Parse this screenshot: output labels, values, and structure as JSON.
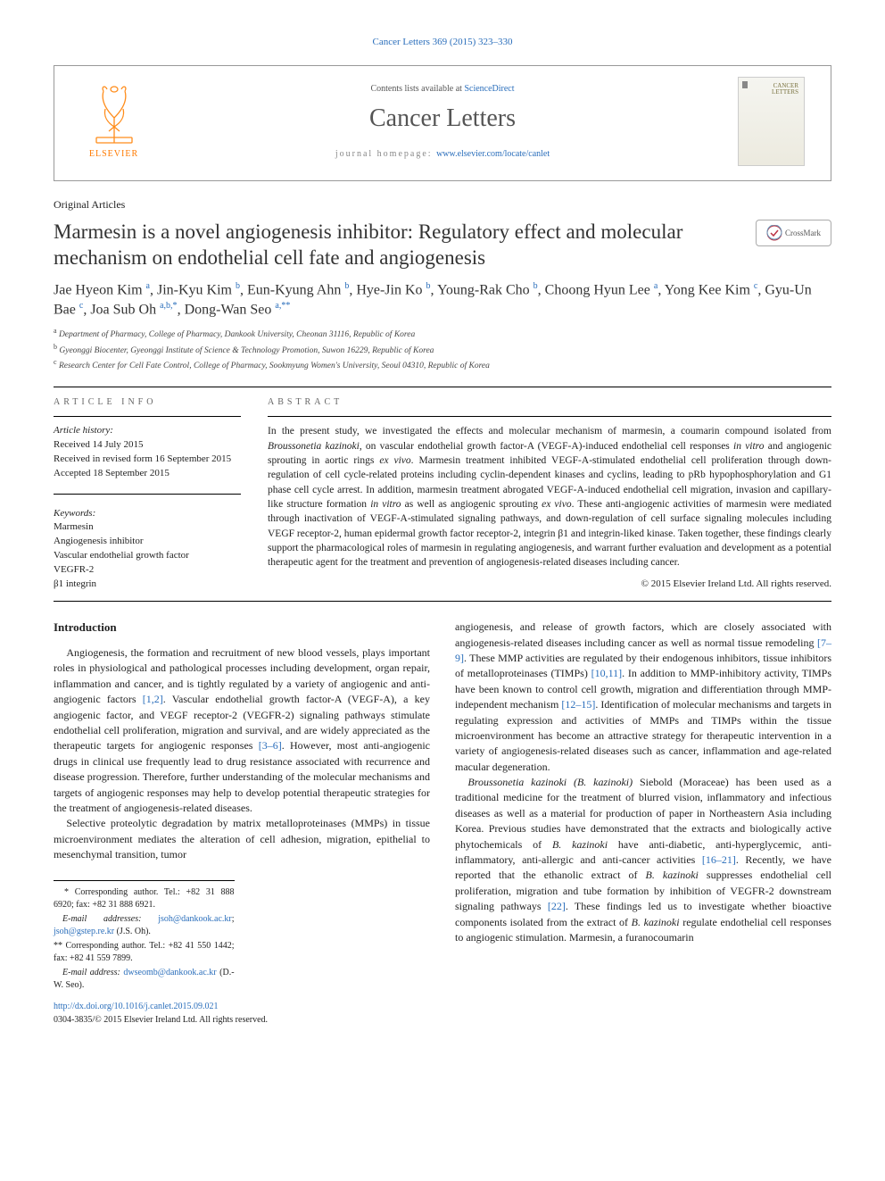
{
  "journal_ref": "Cancer Letters 369 (2015) 323–330",
  "banner": {
    "lists_prefix": "Contents lists available at ",
    "lists_link": "ScienceDirect",
    "journal_name": "Cancer Letters",
    "homepage_label": "journal homepage: ",
    "homepage_url": "www.elsevier.com/locate/canlet",
    "publisher": "ELSEVIER"
  },
  "article_type": "Original Articles",
  "title": "Marmesin is a novel angiogenesis inhibitor: Regulatory effect and molecular mechanism on endothelial cell fate and angiogenesis",
  "crossmark_label": "CrossMark",
  "authors_html": "Jae Hyeon Kim <sup>a</sup>, Jin-Kyu Kim <sup>b</sup>, Eun-Kyung Ahn <sup>b</sup>, Hye-Jin Ko <sup>b</sup>, Young-Rak Cho <sup>b</sup>, Choong Hyun Lee <sup>a</sup>, Yong Kee Kim <sup>c</sup>, Gyu-Un Bae <sup>c</sup>, Joa Sub Oh <sup>a,b,*</sup>, Dong-Wan Seo <sup>a,**</sup>",
  "affiliations": [
    {
      "sup": "a",
      "text": "Department of Pharmacy, College of Pharmacy, Dankook University, Cheonan 31116, Republic of Korea"
    },
    {
      "sup": "b",
      "text": "Gyeonggi Biocenter, Gyeonggi Institute of Science & Technology Promotion, Suwon 16229, Republic of Korea"
    },
    {
      "sup": "c",
      "text": "Research Center for Cell Fate Control, College of Pharmacy, Sookmyung Women's University, Seoul 04310, Republic of Korea"
    }
  ],
  "info_head": "ARTICLE INFO",
  "history_label": "Article history:",
  "history": "Received 14 July 2015\nReceived in revised form 16 September 2015\nAccepted 18 September 2015",
  "keywords_label": "Keywords:",
  "keywords": [
    "Marmesin",
    "Angiogenesis inhibitor",
    "Vascular endothelial growth factor",
    "VEGFR-2",
    "β1 integrin"
  ],
  "abstract_head": "ABSTRACT",
  "abstract": "In the present study, we investigated the effects and molecular mechanism of marmesin, a coumarin compound isolated from Broussonetia kazinoki, on vascular endothelial growth factor-A (VEGF-A)-induced endothelial cell responses in vitro and angiogenic sprouting in aortic rings ex vivo. Marmesin treatment inhibited VEGF-A-stimulated endothelial cell proliferation through down-regulation of cell cycle-related proteins including cyclin-dependent kinases and cyclins, leading to pRb hypophosphorylation and G1 phase cell cycle arrest. In addition, marmesin treatment abrogated VEGF-A-induced endothelial cell migration, invasion and capillary-like structure formation in vitro as well as angiogenic sprouting ex vivo. These anti-angiogenic activities of marmesin were mediated through inactivation of VEGF-A-stimulated signaling pathways, and down-regulation of cell surface signaling molecules including VEGF receptor-2, human epidermal growth factor receptor-2, integrin β1 and integrin-liked kinase. Taken together, these findings clearly support the pharmacological roles of marmesin in regulating angiogenesis, and warrant further evaluation and development as a potential therapeutic agent for the treatment and prevention of angiogenesis-related diseases including cancer.",
  "abstract_copy": "© 2015 Elsevier Ireland Ltd. All rights reserved.",
  "intro_head": "Introduction",
  "p1": "Angiogenesis, the formation and recruitment of new blood vessels, plays important roles in physiological and pathological processes including development, organ repair, inflammation and cancer, and is tightly regulated by a variety of angiogenic and anti-angiogenic factors [1,2]. Vascular endothelial growth factor-A (VEGF-A), a key angiogenic factor, and VEGF receptor-2 (VEGFR-2) signaling pathways stimulate endothelial cell proliferation, migration and survival, and are widely appreciated as the therapeutic targets for angiogenic responses [3–6]. However, most anti-angiogenic drugs in clinical use frequently lead to drug resistance associated with recurrence and disease progression. Therefore, further understanding of the molecular mechanisms and targets of angiogenic responses may help to develop potential therapeutic strategies for the treatment of angiogenesis-related diseases.",
  "p2": "Selective proteolytic degradation by matrix metalloproteinases (MMPs) in tissue microenvironment mediates the alteration of cell adhesion, migration, epithelial to mesenchymal transition, tumor",
  "p3": "angiogenesis, and release of growth factors, which are closely associated with angiogenesis-related diseases including cancer as well as normal tissue remodeling [7–9]. These MMP activities are regulated by their endogenous inhibitors, tissue inhibitors of metalloproteinases (TIMPs) [10,11]. In addition to MMP-inhibitory activity, TIMPs have been known to control cell growth, migration and differentiation through MMP-independent mechanism [12–15]. Identification of molecular mechanisms and targets in regulating expression and activities of MMPs and TIMPs within the tissue microenvironment has become an attractive strategy for therapeutic intervention in a variety of angiogenesis-related diseases such as cancer, inflammation and age-related macular degeneration.",
  "p4": "Broussonetia kazinoki (B. kazinoki) Siebold (Moraceae) has been used as a traditional medicine for the treatment of blurred vision, inflammatory and infectious diseases as well as a material for production of paper in Northeastern Asia including Korea. Previous studies have demonstrated that the extracts and biologically active phytochemicals of B. kazinoki have anti-diabetic, anti-hyperglycemic, anti-inflammatory, anti-allergic and anti-cancer activities [16–21]. Recently, we have reported that the ethanolic extract of B. kazinoki suppresses endothelial cell proliferation, migration and tube formation by inhibition of VEGFR-2 downstream signaling pathways [22]. These findings led us to investigate whether bioactive components isolated from the extract of B. kazinoki regulate endothelial cell responses to angiogenic stimulation. Marmesin, a furanocoumarin",
  "refs": {
    "r1": "[1,2]",
    "r2": "[3–6]",
    "r3": "[7–9]",
    "r4": "[10,11]",
    "r5": "[12–15]",
    "r6": "[16–21]",
    "r7": "[22]"
  },
  "fn1": "* Corresponding author. Tel.: +82 31 888 6920; fax: +82 31 888 6921.",
  "fn1b_label": "E-mail addresses: ",
  "fn1b_e1": "jsoh@dankook.ac.kr",
  "fn1b_e2": "jsoh@gstep.re.kr",
  "fn1b_tail": " (J.S. Oh).",
  "fn2": "** Corresponding author. Tel.: +82 41 550 1442; fax: +82 41 559 7899.",
  "fn2b_label": "E-mail address: ",
  "fn2b_e": "dwseomb@dankook.ac.kr",
  "fn2b_tail": " (D.-W. Seo).",
  "doi": "http://dx.doi.org/10.1016/j.canlet.2015.09.021",
  "issn_copy": "0304-3835/© 2015 Elsevier Ireland Ltd. All rights reserved.",
  "colors": {
    "link": "#2a6ebb",
    "orange": "#ff7a00",
    "text": "#222",
    "muted": "#666"
  }
}
